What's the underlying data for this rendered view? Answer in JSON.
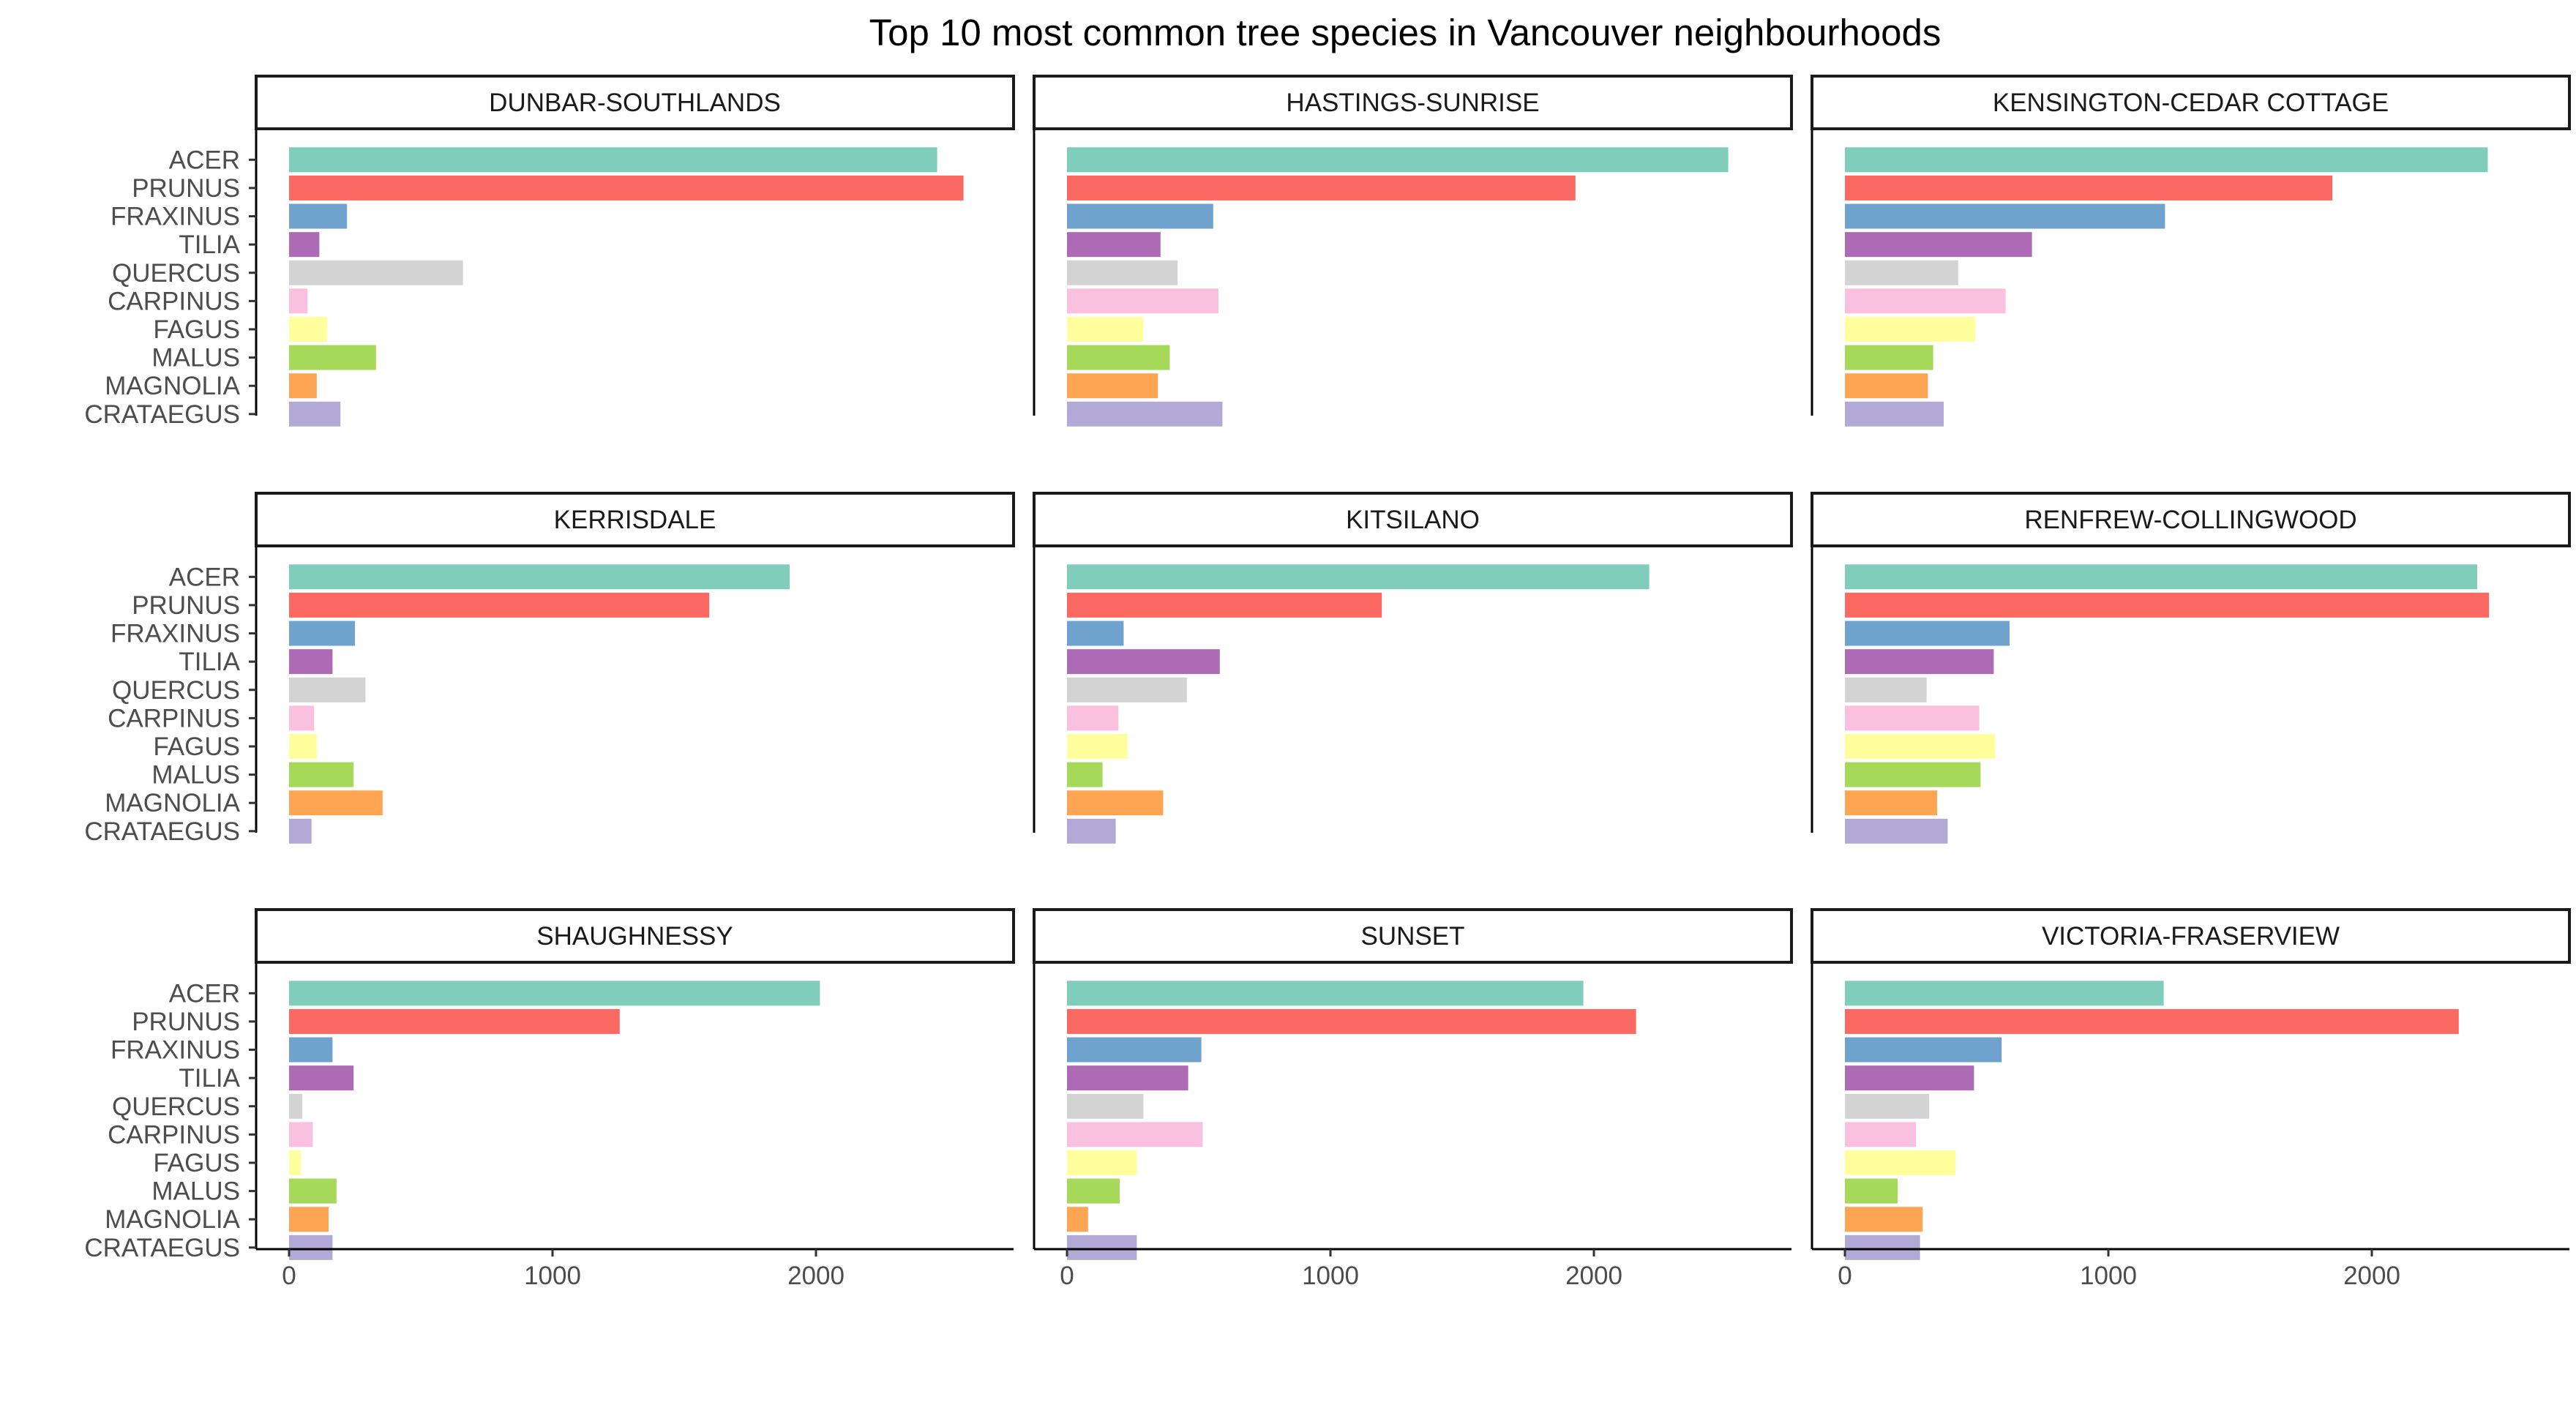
{
  "chart_data": {
    "type": "bar",
    "orientation": "horizontal",
    "title": "Top 10 most common tree species in Vancouver neighbourhoods",
    "categories": [
      "ACER",
      "PRUNUS",
      "FRAXINUS",
      "TILIA",
      "QUERCUS",
      "CARPINUS",
      "FAGUS",
      "MALUS",
      "MAGNOLIA",
      "CRATAEGUS"
    ],
    "colors": [
      "#80cdbb",
      "#fb6a62",
      "#6fa2cc",
      "#ad6bb5",
      "#d3d3d3",
      "#f9c0e0",
      "#ffff9d",
      "#a6d85a",
      "#fda553",
      "#b2a9d6"
    ],
    "xlim": [
      0,
      2750
    ],
    "x_ticks": [
      0,
      1000,
      2000
    ],
    "x_tick_labels": [
      "0",
      "1000",
      "2000"
    ],
    "legend": "none",
    "grid": false,
    "facet_layout": "3x3",
    "panels": [
      {
        "name": "DUNBAR-SOUTHLANDS",
        "values": [
          2460,
          2560,
          220,
          115,
          660,
          70,
          145,
          330,
          105,
          195
        ]
      },
      {
        "name": "HASTINGS-SUNRISE",
        "values": [
          2510,
          1930,
          555,
          355,
          420,
          575,
          290,
          390,
          345,
          590
        ]
      },
      {
        "name": "KENSINGTON-CEDAR COTTAGE",
        "values": [
          2440,
          1850,
          1215,
          710,
          430,
          610,
          495,
          335,
          315,
          375
        ]
      },
      {
        "name": "KERRISDALE",
        "values": [
          1900,
          1595,
          250,
          165,
          290,
          95,
          105,
          245,
          355,
          85
        ]
      },
      {
        "name": "KITSILANO",
        "values": [
          2210,
          1195,
          215,
          580,
          455,
          195,
          230,
          135,
          365,
          185
        ]
      },
      {
        "name": "RENFREW-COLLINGWOOD",
        "values": [
          2400,
          2445,
          625,
          565,
          310,
          510,
          570,
          515,
          350,
          390
        ]
      },
      {
        "name": "SHAUGHNESSY",
        "values": [
          2015,
          1255,
          165,
          245,
          50,
          90,
          45,
          180,
          150,
          165
        ]
      },
      {
        "name": "SUNSET",
        "values": [
          1960,
          2160,
          510,
          460,
          290,
          515,
          265,
          200,
          80,
          265
        ]
      },
      {
        "name": "VICTORIA-FRASERVIEW",
        "values": [
          1210,
          2330,
          595,
          490,
          320,
          270,
          420,
          200,
          295,
          285
        ]
      }
    ]
  }
}
